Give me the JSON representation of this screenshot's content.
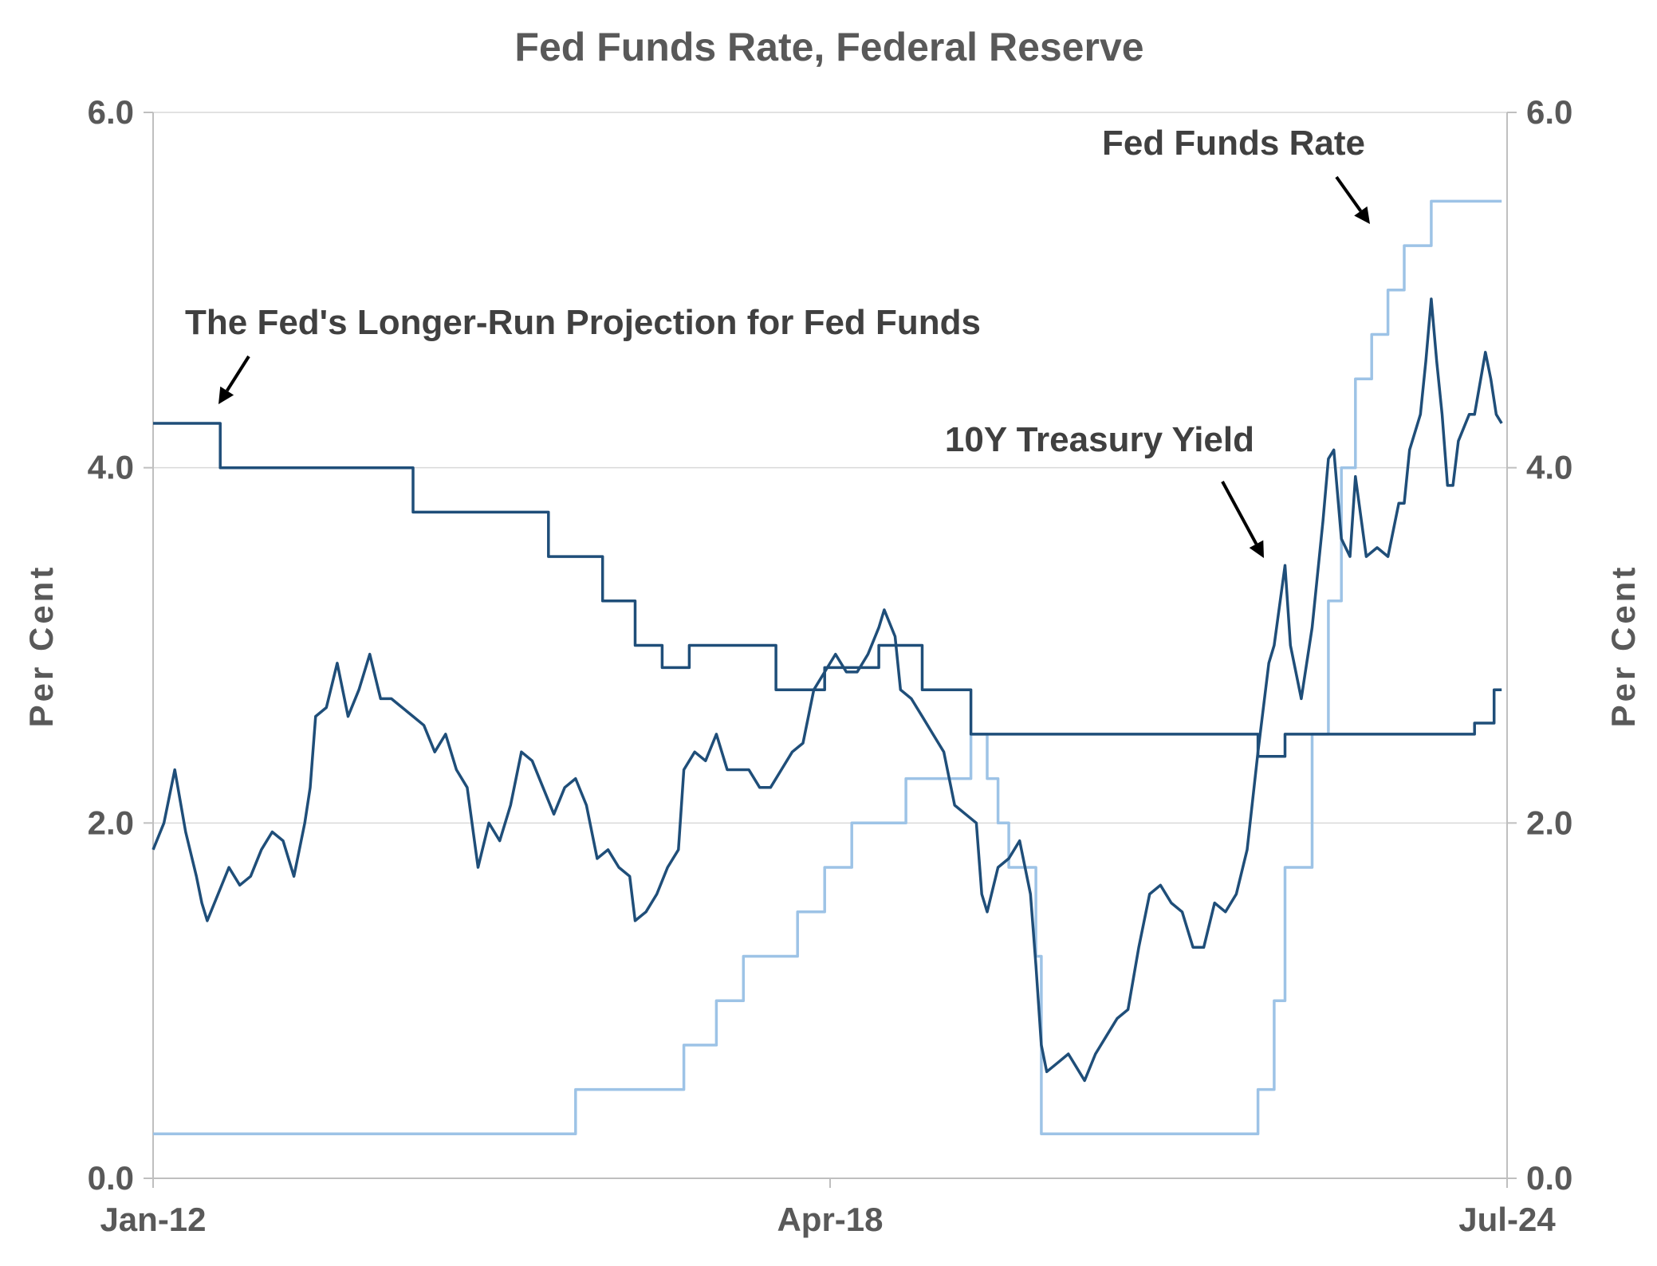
{
  "chart_data": {
    "type": "line",
    "title": "Fed Funds Rate, Federal Reserve",
    "ylabel_left": "Per Cent",
    "ylabel_right": "Per Cent",
    "ylim": [
      0,
      6
    ],
    "y_ticks": [
      "0.0",
      "2.0",
      "4.0",
      "6.0"
    ],
    "x_ticks": [
      {
        "label": "Jan-12",
        "t": 2012.0
      },
      {
        "label": "Apr-18",
        "t": 2018.25
      },
      {
        "label": "Jul-24",
        "t": 2024.5
      }
    ],
    "xlim": [
      2012.0,
      2024.5
    ],
    "grid": true,
    "annotations": [
      {
        "text": "Fed Funds Rate",
        "series": "fed_funds"
      },
      {
        "text": "The Fed's Longer-Run Projection for Fed Funds",
        "series": "longer_run"
      },
      {
        "text": "10Y Treasury Yield",
        "series": "ten_year"
      }
    ],
    "colors": {
      "ten_year": "#1f4e79",
      "longer_run": "#1f4e79",
      "fed_funds": "#9dc3e6",
      "text": "#595959",
      "annotation": "#404040"
    },
    "series": [
      {
        "key": "fed_funds",
        "step": true,
        "points": [
          [
            2012.0,
            0.25
          ],
          [
            2015.9,
            0.5
          ],
          [
            2016.9,
            0.75
          ],
          [
            2017.2,
            1.0
          ],
          [
            2017.45,
            1.25
          ],
          [
            2017.95,
            1.5
          ],
          [
            2018.2,
            1.75
          ],
          [
            2018.45,
            2.0
          ],
          [
            2018.95,
            2.25
          ],
          [
            2019.55,
            2.5
          ],
          [
            2019.7,
            2.25
          ],
          [
            2019.8,
            2.0
          ],
          [
            2019.9,
            1.75
          ],
          [
            2020.15,
            1.25
          ],
          [
            2020.2,
            0.25
          ],
          [
            2022.2,
            0.5
          ],
          [
            2022.35,
            1.0
          ],
          [
            2022.45,
            1.75
          ],
          [
            2022.7,
            2.5
          ],
          [
            2022.85,
            3.25
          ],
          [
            2022.97,
            4.0
          ],
          [
            2023.1,
            4.5
          ],
          [
            2023.25,
            4.75
          ],
          [
            2023.4,
            5.0
          ],
          [
            2023.55,
            5.25
          ],
          [
            2023.8,
            5.5
          ],
          [
            2024.45,
            5.5
          ]
        ]
      },
      {
        "key": "longer_run",
        "step": true,
        "points": [
          [
            2012.0,
            4.25
          ],
          [
            2012.62,
            4.0
          ],
          [
            2014.4,
            3.75
          ],
          [
            2015.65,
            3.5
          ],
          [
            2016.15,
            3.25
          ],
          [
            2016.45,
            3.0
          ],
          [
            2016.7,
            2.875
          ],
          [
            2016.95,
            3.0
          ],
          [
            2017.75,
            2.75
          ],
          [
            2018.2,
            2.875
          ],
          [
            2018.7,
            3.0
          ],
          [
            2019.1,
            2.75
          ],
          [
            2019.55,
            2.5
          ],
          [
            2022.2,
            2.375
          ],
          [
            2022.45,
            2.5
          ],
          [
            2024.2,
            2.5625
          ],
          [
            2024.38,
            2.75
          ],
          [
            2024.45,
            2.75
          ]
        ]
      },
      {
        "key": "ten_year",
        "step": false,
        "points": [
          [
            2012.0,
            1.85
          ],
          [
            2012.1,
            2.0
          ],
          [
            2012.2,
            2.3
          ],
          [
            2012.3,
            1.95
          ],
          [
            2012.4,
            1.7
          ],
          [
            2012.45,
            1.55
          ],
          [
            2012.5,
            1.45
          ],
          [
            2012.6,
            1.6
          ],
          [
            2012.7,
            1.75
          ],
          [
            2012.8,
            1.65
          ],
          [
            2012.9,
            1.7
          ],
          [
            2013.0,
            1.85
          ],
          [
            2013.1,
            1.95
          ],
          [
            2013.2,
            1.9
          ],
          [
            2013.3,
            1.7
          ],
          [
            2013.4,
            2.0
          ],
          [
            2013.45,
            2.2
          ],
          [
            2013.5,
            2.6
          ],
          [
            2013.6,
            2.65
          ],
          [
            2013.7,
            2.9
          ],
          [
            2013.8,
            2.6
          ],
          [
            2013.9,
            2.75
          ],
          [
            2014.0,
            2.95
          ],
          [
            2014.1,
            2.7
          ],
          [
            2014.2,
            2.7
          ],
          [
            2014.3,
            2.65
          ],
          [
            2014.4,
            2.6
          ],
          [
            2014.5,
            2.55
          ],
          [
            2014.6,
            2.4
          ],
          [
            2014.7,
            2.5
          ],
          [
            2014.8,
            2.3
          ],
          [
            2014.9,
            2.2
          ],
          [
            2015.0,
            1.75
          ],
          [
            2015.1,
            2.0
          ],
          [
            2015.2,
            1.9
          ],
          [
            2015.3,
            2.1
          ],
          [
            2015.4,
            2.4
          ],
          [
            2015.5,
            2.35
          ],
          [
            2015.6,
            2.2
          ],
          [
            2015.7,
            2.05
          ],
          [
            2015.8,
            2.2
          ],
          [
            2015.9,
            2.25
          ],
          [
            2016.0,
            2.1
          ],
          [
            2016.1,
            1.8
          ],
          [
            2016.2,
            1.85
          ],
          [
            2016.3,
            1.75
          ],
          [
            2016.4,
            1.7
          ],
          [
            2016.45,
            1.45
          ],
          [
            2016.55,
            1.5
          ],
          [
            2016.65,
            1.6
          ],
          [
            2016.75,
            1.75
          ],
          [
            2016.85,
            1.85
          ],
          [
            2016.9,
            2.3
          ],
          [
            2017.0,
            2.4
          ],
          [
            2017.1,
            2.35
          ],
          [
            2017.2,
            2.5
          ],
          [
            2017.3,
            2.3
          ],
          [
            2017.4,
            2.3
          ],
          [
            2017.5,
            2.3
          ],
          [
            2017.6,
            2.2
          ],
          [
            2017.7,
            2.2
          ],
          [
            2017.8,
            2.3
          ],
          [
            2017.9,
            2.4
          ],
          [
            2018.0,
            2.45
          ],
          [
            2018.1,
            2.75
          ],
          [
            2018.2,
            2.85
          ],
          [
            2018.3,
            2.95
          ],
          [
            2018.4,
            2.85
          ],
          [
            2018.5,
            2.85
          ],
          [
            2018.6,
            2.95
          ],
          [
            2018.7,
            3.1
          ],
          [
            2018.75,
            3.2
          ],
          [
            2018.85,
            3.05
          ],
          [
            2018.9,
            2.75
          ],
          [
            2019.0,
            2.7
          ],
          [
            2019.1,
            2.6
          ],
          [
            2019.2,
            2.5
          ],
          [
            2019.3,
            2.4
          ],
          [
            2019.4,
            2.1
          ],
          [
            2019.5,
            2.05
          ],
          [
            2019.6,
            2.0
          ],
          [
            2019.65,
            1.6
          ],
          [
            2019.7,
            1.5
          ],
          [
            2019.8,
            1.75
          ],
          [
            2019.9,
            1.8
          ],
          [
            2020.0,
            1.9
          ],
          [
            2020.1,
            1.6
          ],
          [
            2020.15,
            1.2
          ],
          [
            2020.2,
            0.75
          ],
          [
            2020.25,
            0.6
          ],
          [
            2020.35,
            0.65
          ],
          [
            2020.45,
            0.7
          ],
          [
            2020.55,
            0.6
          ],
          [
            2020.6,
            0.55
          ],
          [
            2020.7,
            0.7
          ],
          [
            2020.8,
            0.8
          ],
          [
            2020.9,
            0.9
          ],
          [
            2021.0,
            0.95
          ],
          [
            2021.1,
            1.3
          ],
          [
            2021.2,
            1.6
          ],
          [
            2021.3,
            1.65
          ],
          [
            2021.4,
            1.55
          ],
          [
            2021.5,
            1.5
          ],
          [
            2021.6,
            1.3
          ],
          [
            2021.7,
            1.3
          ],
          [
            2021.8,
            1.55
          ],
          [
            2021.9,
            1.5
          ],
          [
            2022.0,
            1.6
          ],
          [
            2022.1,
            1.85
          ],
          [
            2022.2,
            2.4
          ],
          [
            2022.3,
            2.9
          ],
          [
            2022.35,
            3.0
          ],
          [
            2022.45,
            3.45
          ],
          [
            2022.5,
            3.0
          ],
          [
            2022.6,
            2.7
          ],
          [
            2022.7,
            3.1
          ],
          [
            2022.8,
            3.7
          ],
          [
            2022.85,
            4.05
          ],
          [
            2022.9,
            4.1
          ],
          [
            2022.97,
            3.6
          ],
          [
            2023.05,
            3.5
          ],
          [
            2023.1,
            3.95
          ],
          [
            2023.2,
            3.5
          ],
          [
            2023.3,
            3.55
          ],
          [
            2023.4,
            3.5
          ],
          [
            2023.5,
            3.8
          ],
          [
            2023.55,
            3.8
          ],
          [
            2023.6,
            4.1
          ],
          [
            2023.7,
            4.3
          ],
          [
            2023.75,
            4.6
          ],
          [
            2023.8,
            4.95
          ],
          [
            2023.85,
            4.6
          ],
          [
            2023.9,
            4.3
          ],
          [
            2023.95,
            3.9
          ],
          [
            2024.0,
            3.9
          ],
          [
            2024.05,
            4.15
          ],
          [
            2024.15,
            4.3
          ],
          [
            2024.2,
            4.3
          ],
          [
            2024.3,
            4.65
          ],
          [
            2024.35,
            4.5
          ],
          [
            2024.4,
            4.3
          ],
          [
            2024.45,
            4.25
          ]
        ]
      }
    ]
  }
}
